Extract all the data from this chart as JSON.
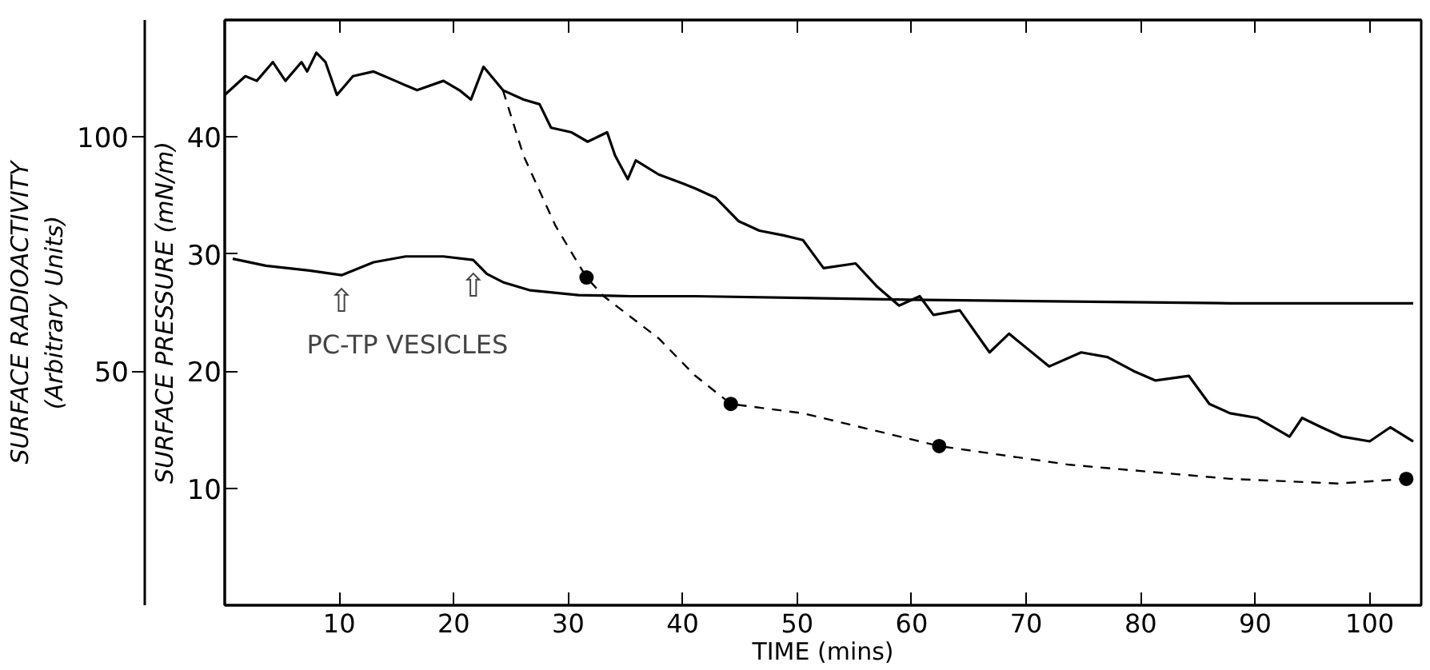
{
  "chart_data": {
    "type": "line",
    "xlabel": "TIME (mins)",
    "ylabel": "SURFACE PRESSURE (mN/m)",
    "y2label": "SURFACE RADIOACTIVITY\n(Arbitrary Units)",
    "xlim": [
      0,
      104.5
    ],
    "xticks": [
      10,
      20,
      30,
      40,
      50,
      60,
      70,
      80,
      90,
      100
    ],
    "ylim": [
      0,
      50
    ],
    "yticks": [
      10,
      20,
      30,
      40
    ],
    "y2lim": [
      0,
      125
    ],
    "y2ticks": [
      50,
      100
    ],
    "grid": false,
    "series": [
      {
        "axis": "y2",
        "color": "#000000",
        "line_style": "solid",
        "x": [
          0,
          1.8,
          2.8,
          4.2,
          5.3,
          6.7,
          7.2,
          8.0,
          8.8,
          9.8,
          11.2,
          13.0,
          14.9,
          16.8,
          19.1,
          20.5,
          21.5,
          22.6,
          24.3,
          26.1,
          27.5,
          28.5,
          30.3,
          31.7,
          33.4,
          34.1,
          35.2,
          35.9,
          37.9,
          40.1,
          41.1,
          42.9,
          44.9,
          46.7,
          48.8,
          50.5,
          52.3,
          55.1,
          57.0,
          58.9,
          60.7,
          61.9,
          64.2,
          66.8,
          68.5,
          72.0,
          74.8,
          77.1,
          79.4,
          81.3,
          84.2,
          86.0,
          87.8,
          90.2,
          93.0,
          94.1,
          95.8,
          97.6,
          100,
          101.8,
          103.8
        ],
        "values": [
          109,
          113,
          112,
          116,
          112,
          116,
          114,
          118,
          116,
          109,
          113,
          114,
          112,
          110,
          112,
          110,
          108,
          115,
          110,
          108,
          107,
          102,
          101,
          99,
          101,
          96,
          91,
          95,
          92,
          90,
          89,
          87,
          82,
          80,
          79,
          78,
          72,
          73,
          68,
          64,
          66,
          62,
          63,
          54,
          58,
          51,
          54,
          53,
          50,
          48,
          49,
          43,
          41,
          40,
          36,
          40,
          38,
          36,
          35,
          38,
          35
        ]
      },
      {
        "axis": "y",
        "color": "#000000",
        "line_style": "solid",
        "x": [
          0.7,
          3.6,
          7.4,
          10.2,
          13.0,
          15.8,
          19.1,
          21.7,
          22.9,
          24.3,
          26.7,
          30.9,
          35.5,
          41.1,
          59.8,
          87.8,
          103.8
        ],
        "values": [
          29.6,
          29.0,
          28.6,
          28.2,
          29.3,
          29.8,
          29.8,
          29.5,
          28.3,
          27.6,
          26.9,
          26.5,
          26.4,
          26.4,
          26.1,
          25.8,
          25.8
        ]
      },
      {
        "axis": "y2",
        "color": "#000000",
        "line_style": "dashed",
        "x": [
          24.3,
          26.1,
          28.9,
          31.6,
          33.1,
          37.9,
          41.1,
          44.2,
          50.5,
          62.4,
          73.8,
          87.8,
          97.2,
          103.2
        ],
        "values": [
          110,
          96,
          81,
          70,
          66,
          57,
          49,
          43,
          41,
          34,
          30,
          27,
          26,
          27
        ]
      },
      {
        "type": "scatter",
        "axis": "y2",
        "color": "#000000",
        "marker": "circle",
        "x": [
          31.6,
          44.2,
          62.4,
          103.2
        ],
        "values": [
          70,
          43,
          34,
          27
        ]
      }
    ],
    "annotations": [
      {
        "text": "⇧",
        "x": 10.2,
        "y": 28.2
      },
      {
        "text": "⇧",
        "x": 21.7,
        "y": 29.5
      },
      "PC-TP VESICLES"
    ]
  }
}
